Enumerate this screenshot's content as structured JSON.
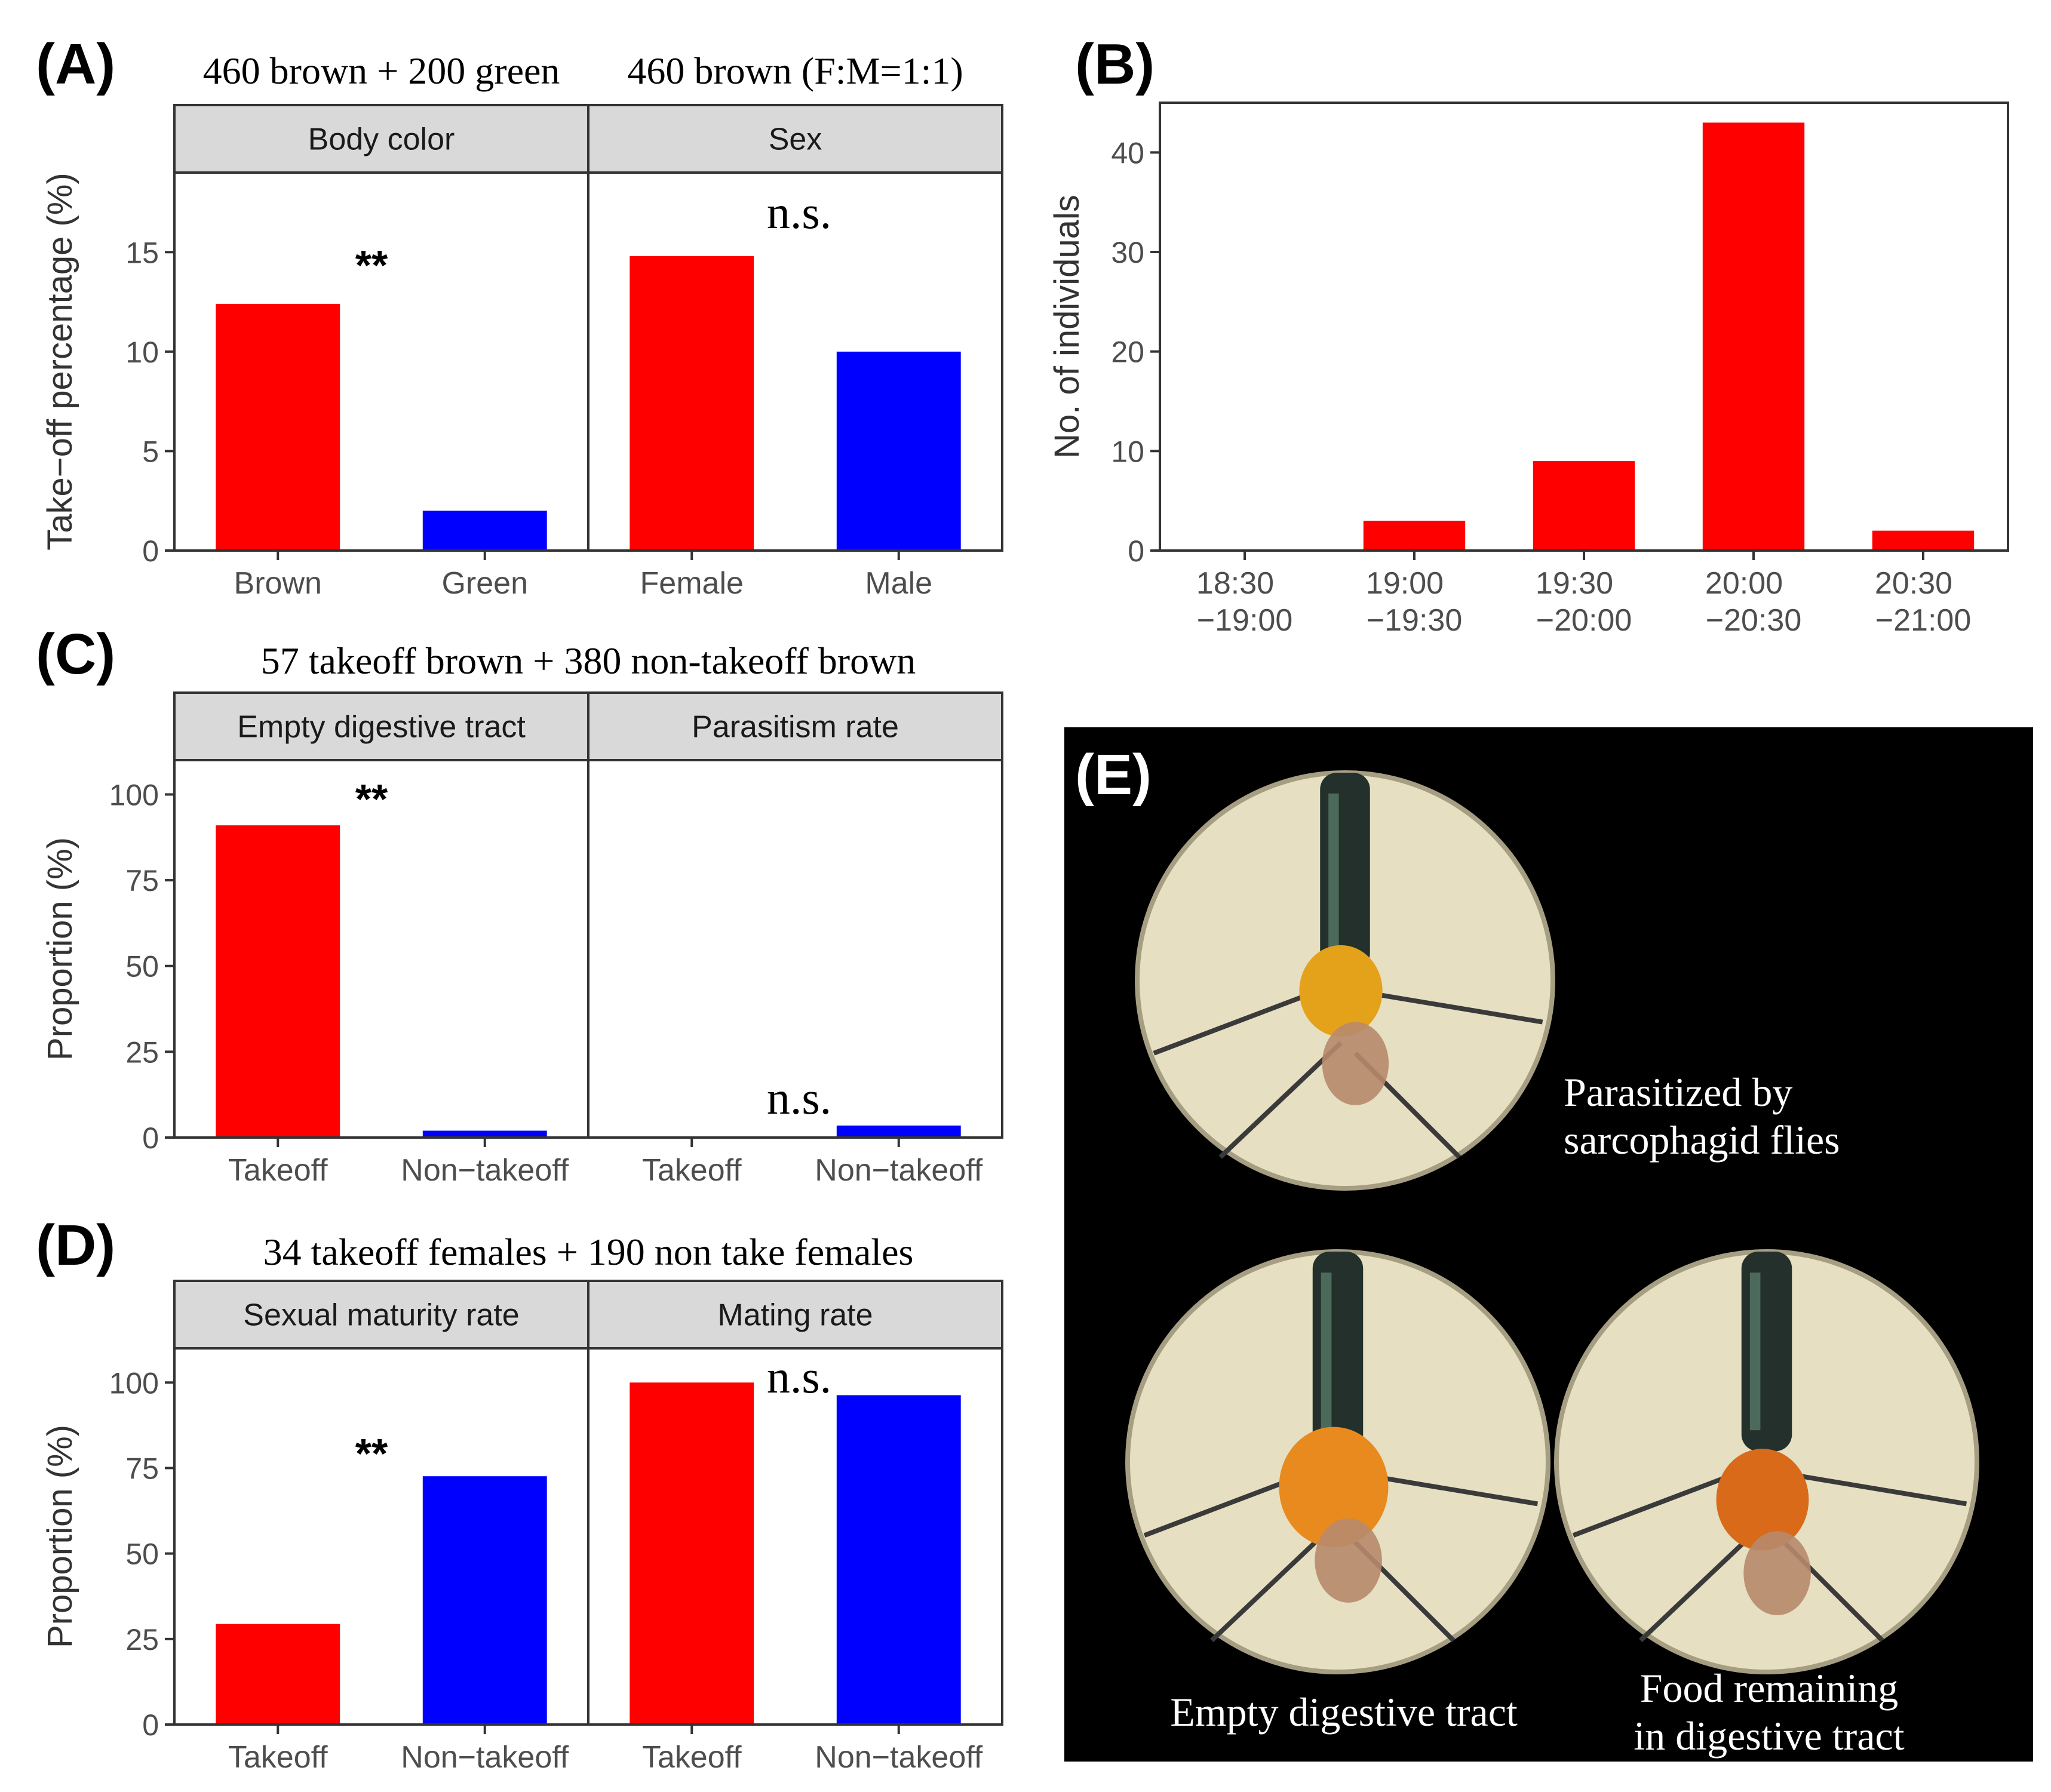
{
  "colors": {
    "red": "#ff0000",
    "blue": "#0000ff",
    "strip": "#d9d9d9",
    "axis": "#333333",
    "tick": "#4d4d4d",
    "photo_bg": "#000000"
  },
  "chart_data": [
    {
      "id": "A",
      "type": "bar",
      "panel_label": "(A)",
      "ylabel": "Take−off percentage (%)",
      "ylim": [
        0,
        19
      ],
      "yticks": [
        0,
        5,
        10,
        15
      ],
      "facets": [
        {
          "strip": "Body color",
          "title": "460 brown + 200 green",
          "annotation": "**",
          "categories": [
            "Brown",
            "Green"
          ],
          "values": [
            12.4,
            2.0
          ],
          "colors": [
            "red",
            "blue"
          ]
        },
        {
          "strip": "Sex",
          "title": "460 brown (F:M=1:1)",
          "annotation": "n.s.",
          "categories": [
            "Female",
            "Male"
          ],
          "values": [
            14.8,
            10.0
          ],
          "colors": [
            "red",
            "blue"
          ]
        }
      ]
    },
    {
      "id": "B",
      "type": "bar",
      "panel_label": "(B)",
      "ylabel": "No. of individuals",
      "ylim": [
        0,
        45
      ],
      "yticks": [
        0,
        10,
        20,
        30,
        40
      ],
      "categories": [
        [
          "18:30",
          "−19:00"
        ],
        [
          "19:00",
          "−19:30"
        ],
        [
          "19:30",
          "−20:00"
        ],
        [
          "20:00",
          "−20:30"
        ],
        [
          "20:30",
          "−21:00"
        ]
      ],
      "values": [
        0,
        3,
        9,
        43,
        2
      ]
    },
    {
      "id": "C",
      "type": "bar",
      "panel_label": "(C)",
      "title": "57 takeoff brown + 380 non-takeoff brown",
      "ylabel": "Proportion (%)",
      "ylim": [
        0,
        110
      ],
      "yticks": [
        0,
        25,
        50,
        75,
        100
      ],
      "facets": [
        {
          "strip": "Empty digestive tract",
          "annotation": "**",
          "categories": [
            "Takeoff",
            "Non−takeoff"
          ],
          "values": [
            91,
            2
          ],
          "colors": [
            "red",
            "blue"
          ]
        },
        {
          "strip": "Parasitism rate",
          "annotation": "n.s.",
          "categories": [
            "Takeoff",
            "Non−takeoff"
          ],
          "values": [
            0,
            3.5
          ],
          "colors": [
            "red",
            "blue"
          ]
        }
      ]
    },
    {
      "id": "D",
      "type": "bar",
      "panel_label": "(D)",
      "title": "34 takeoff females + 190 non take females",
      "ylabel": "Proportion (%)",
      "ylim": [
        0,
        110
      ],
      "yticks": [
        0,
        25,
        50,
        75,
        100
      ],
      "facets": [
        {
          "strip": "Sexual maturity rate",
          "annotation": "**",
          "categories": [
            "Takeoff",
            "Non−takeoff"
          ],
          "values": [
            29.4,
            72.6
          ],
          "colors": [
            "red",
            "blue"
          ]
        },
        {
          "strip": "Mating rate",
          "annotation": "n.s.",
          "categories": [
            "Takeoff",
            "Non−takeoff"
          ],
          "values": [
            100,
            96.3
          ],
          "colors": [
            "red",
            "blue"
          ]
        }
      ]
    }
  ],
  "panel_e": {
    "label": "(E)",
    "captions": {
      "parasitized": [
        "Parasitized by",
        "sarcophagid flies"
      ],
      "empty": "Empty digestive tract",
      "food": [
        "Food remaining",
        "in digestive tract"
      ]
    }
  }
}
